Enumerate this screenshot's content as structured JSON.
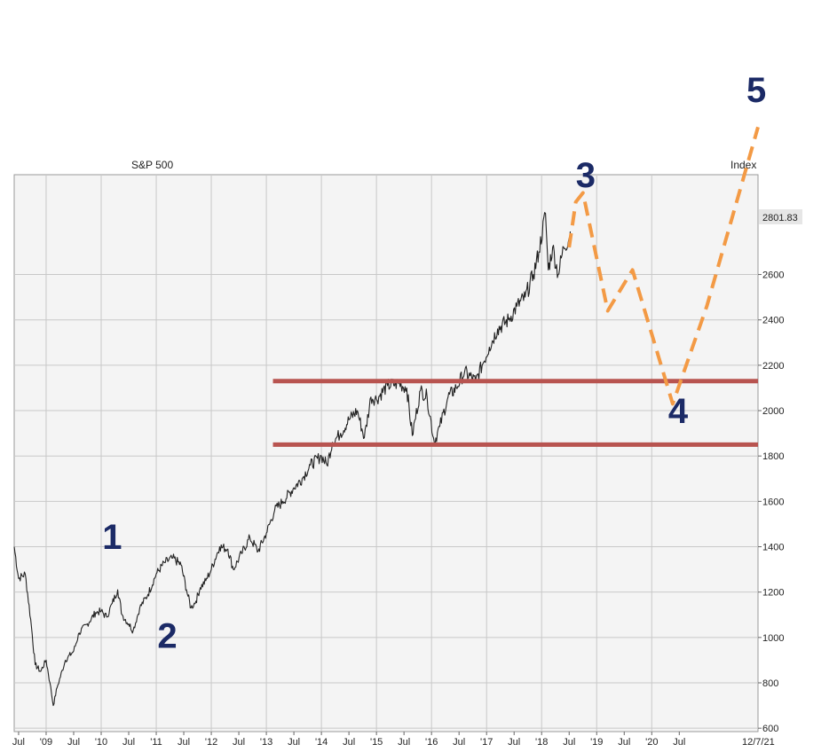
{
  "chart_data": {
    "type": "line",
    "title": "S&P 500",
    "ylabel": "Index",
    "ylim": [
      585,
      3040
    ],
    "y_ticks": [
      600,
      800,
      1000,
      1200,
      1400,
      1600,
      1800,
      2000,
      2200,
      2400,
      2600
    ],
    "x_range": [
      2008.42,
      2021.93
    ],
    "x_ticks": [
      {
        "x": 2008.5,
        "label": "Jul"
      },
      {
        "x": 2009.0,
        "label": "'09"
      },
      {
        "x": 2009.5,
        "label": "Jul"
      },
      {
        "x": 2010.0,
        "label": "'10"
      },
      {
        "x": 2010.5,
        "label": "Jul"
      },
      {
        "x": 2011.0,
        "label": "'11"
      },
      {
        "x": 2011.5,
        "label": "Jul"
      },
      {
        "x": 2012.0,
        "label": "'12"
      },
      {
        "x": 2012.5,
        "label": "Jul"
      },
      {
        "x": 2013.0,
        "label": "'13"
      },
      {
        "x": 2013.5,
        "label": "Jul"
      },
      {
        "x": 2014.0,
        "label": "'14"
      },
      {
        "x": 2014.5,
        "label": "Jul"
      },
      {
        "x": 2015.0,
        "label": "'15"
      },
      {
        "x": 2015.5,
        "label": "Jul"
      },
      {
        "x": 2016.0,
        "label": "'16"
      },
      {
        "x": 2016.5,
        "label": "Jul"
      },
      {
        "x": 2017.0,
        "label": "'17"
      },
      {
        "x": 2017.5,
        "label": "Jul"
      },
      {
        "x": 2018.0,
        "label": "'18"
      },
      {
        "x": 2018.5,
        "label": "Jul"
      },
      {
        "x": 2019.0,
        "label": "'19"
      },
      {
        "x": 2019.5,
        "label": "Jul"
      },
      {
        "x": 2020.0,
        "label": "'20"
      },
      {
        "x": 2020.5,
        "label": "Jul"
      }
    ],
    "end_date_label": "12/7/21",
    "last_value_label": "2801.83",
    "grid": true,
    "series": [
      {
        "color": "#222222",
        "points": [
          [
            2008.42,
            1400
          ],
          [
            2008.5,
            1260
          ],
          [
            2008.62,
            1280
          ],
          [
            2008.72,
            1080
          ],
          [
            2008.8,
            880
          ],
          [
            2008.9,
            850
          ],
          [
            2009.0,
            900
          ],
          [
            2009.07,
            800
          ],
          [
            2009.13,
            700
          ],
          [
            2009.2,
            780
          ],
          [
            2009.35,
            900
          ],
          [
            2009.5,
            940
          ],
          [
            2009.6,
            1020
          ],
          [
            2009.75,
            1060
          ],
          [
            2009.9,
            1110
          ],
          [
            2010.0,
            1115
          ],
          [
            2010.1,
            1090
          ],
          [
            2010.2,
            1150
          ],
          [
            2010.3,
            1210
          ],
          [
            2010.38,
            1100
          ],
          [
            2010.5,
            1060
          ],
          [
            2010.58,
            1030
          ],
          [
            2010.7,
            1130
          ],
          [
            2010.85,
            1190
          ],
          [
            2011.0,
            1280
          ],
          [
            2011.15,
            1330
          ],
          [
            2011.3,
            1350
          ],
          [
            2011.45,
            1320
          ],
          [
            2011.55,
            1210
          ],
          [
            2011.63,
            1130
          ],
          [
            2011.72,
            1160
          ],
          [
            2011.8,
            1220
          ],
          [
            2011.9,
            1250
          ],
          [
            2012.0,
            1300
          ],
          [
            2012.15,
            1400
          ],
          [
            2012.3,
            1390
          ],
          [
            2012.4,
            1300
          ],
          [
            2012.55,
            1370
          ],
          [
            2012.7,
            1440
          ],
          [
            2012.85,
            1380
          ],
          [
            2013.0,
            1460
          ],
          [
            2013.15,
            1560
          ],
          [
            2013.3,
            1600
          ],
          [
            2013.5,
            1660
          ],
          [
            2013.65,
            1700
          ],
          [
            2013.8,
            1760
          ],
          [
            2014.0,
            1800
          ],
          [
            2014.1,
            1760
          ],
          [
            2014.2,
            1860
          ],
          [
            2014.35,
            1900
          ],
          [
            2014.5,
            1960
          ],
          [
            2014.65,
            2000
          ],
          [
            2014.78,
            1880
          ],
          [
            2014.9,
            2060
          ],
          [
            2015.0,
            2050
          ],
          [
            2015.2,
            2110
          ],
          [
            2015.4,
            2120
          ],
          [
            2015.55,
            2100
          ],
          [
            2015.65,
            1890
          ],
          [
            2015.8,
            2090
          ],
          [
            2015.92,
            2060
          ],
          [
            2016.05,
            1860
          ],
          [
            2016.15,
            1930
          ],
          [
            2016.3,
            2060
          ],
          [
            2016.45,
            2100
          ],
          [
            2016.6,
            2170
          ],
          [
            2016.8,
            2130
          ],
          [
            2016.92,
            2200
          ],
          [
            2017.05,
            2280
          ],
          [
            2017.2,
            2360
          ],
          [
            2017.4,
            2400
          ],
          [
            2017.55,
            2460
          ],
          [
            2017.7,
            2500
          ],
          [
            2017.85,
            2600
          ],
          [
            2017.95,
            2700
          ],
          [
            2018.07,
            2870
          ],
          [
            2018.12,
            2620
          ],
          [
            2018.2,
            2720
          ],
          [
            2018.3,
            2600
          ],
          [
            2018.4,
            2720
          ],
          [
            2018.5,
            2760
          ],
          [
            2018.52,
            2790
          ]
        ]
      }
    ],
    "resistance_lines": [
      {
        "value": 2130,
        "x_start": 2013.12,
        "x_end": 2021.93,
        "color": "#b85450"
      },
      {
        "value": 1850,
        "x_start": 2013.12,
        "x_end": 2021.93,
        "color": "#b85450"
      }
    ],
    "projection": {
      "color": "#f39a45",
      "points": [
        [
          2018.5,
          2720
        ],
        [
          2018.62,
          2920
        ],
        [
          2018.75,
          2960
        ],
        [
          2019.2,
          2440
        ],
        [
          2019.65,
          2620
        ],
        [
          2020.38,
          2030
        ],
        [
          2021.0,
          2460
        ],
        [
          2021.93,
          3250
        ]
      ]
    },
    "wave_labels": [
      {
        "label": "1",
        "x": 2010.2,
        "y": 1390
      },
      {
        "label": "2",
        "x": 2011.2,
        "y": 955
      },
      {
        "label": "3",
        "x": 2018.8,
        "y": 2985
      },
      {
        "label": "4",
        "x": 2020.48,
        "y": 1945
      },
      {
        "label": "5",
        "x": 2021.9,
        "y": 3360
      }
    ]
  }
}
